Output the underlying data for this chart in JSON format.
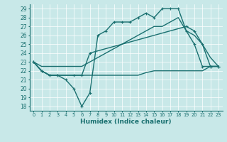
{
  "xlabel": "Humidex (Indice chaleur)",
  "background_color": "#c8e8e8",
  "line_color": "#1a7070",
  "xlim": [
    -0.5,
    23.5
  ],
  "ylim": [
    17.5,
    29.5
  ],
  "yticks": [
    18,
    19,
    20,
    21,
    22,
    23,
    24,
    25,
    26,
    27,
    28,
    29
  ],
  "xticks": [
    0,
    1,
    2,
    3,
    4,
    5,
    6,
    7,
    8,
    9,
    10,
    11,
    12,
    13,
    14,
    15,
    16,
    17,
    18,
    19,
    20,
    21,
    22,
    23
  ],
  "lines": [
    {
      "x": [
        0,
        1,
        2,
        3,
        4,
        5,
        6,
        7,
        8,
        9,
        10,
        11,
        12,
        13,
        14,
        15,
        16,
        17,
        18,
        19,
        20,
        21,
        22,
        23
      ],
      "y": [
        23,
        22,
        21.5,
        21.5,
        21,
        20,
        18,
        19.5,
        26,
        26.5,
        27.5,
        27.5,
        27.5,
        28,
        28.5,
        28,
        29,
        29,
        29,
        26.5,
        25,
        22.5,
        22.5,
        22.5
      ],
      "marker": "+",
      "markersize": 3.5,
      "linewidth": 1.0
    },
    {
      "x": [
        0,
        1,
        2,
        3,
        5,
        6,
        7,
        19,
        20,
        21,
        22,
        23
      ],
      "y": [
        23,
        22,
        21.5,
        21.5,
        21.5,
        21.5,
        24,
        27,
        26.5,
        25,
        22.5,
        22.5
      ],
      "marker": "+",
      "markersize": 3.5,
      "linewidth": 1.0
    },
    {
      "x": [
        0,
        1,
        2,
        3,
        4,
        5,
        6,
        7,
        8,
        9,
        10,
        11,
        12,
        13,
        14,
        15,
        16,
        17,
        18,
        19,
        20,
        21,
        22,
        23
      ],
      "y": [
        23,
        22,
        21.5,
        21.5,
        21.5,
        21.5,
        21.5,
        21.5,
        21.5,
        21.5,
        21.5,
        21.5,
        21.5,
        21.5,
        21.8,
        22,
        22,
        22,
        22,
        22,
        22,
        22,
        22.5,
        22.5
      ],
      "marker": null,
      "markersize": 0,
      "linewidth": 1.0
    },
    {
      "x": [
        0,
        1,
        2,
        3,
        4,
        5,
        6,
        7,
        8,
        9,
        10,
        11,
        12,
        13,
        14,
        15,
        16,
        17,
        18,
        19,
        20,
        21,
        22,
        23
      ],
      "y": [
        23,
        22.5,
        22.5,
        22.5,
        22.5,
        22.5,
        22.5,
        23,
        23.5,
        24,
        24.5,
        25,
        25.5,
        26,
        26.5,
        27,
        27,
        27.5,
        28,
        26.5,
        26,
        25,
        23.5,
        22.5
      ],
      "marker": null,
      "markersize": 0,
      "linewidth": 1.0
    }
  ]
}
